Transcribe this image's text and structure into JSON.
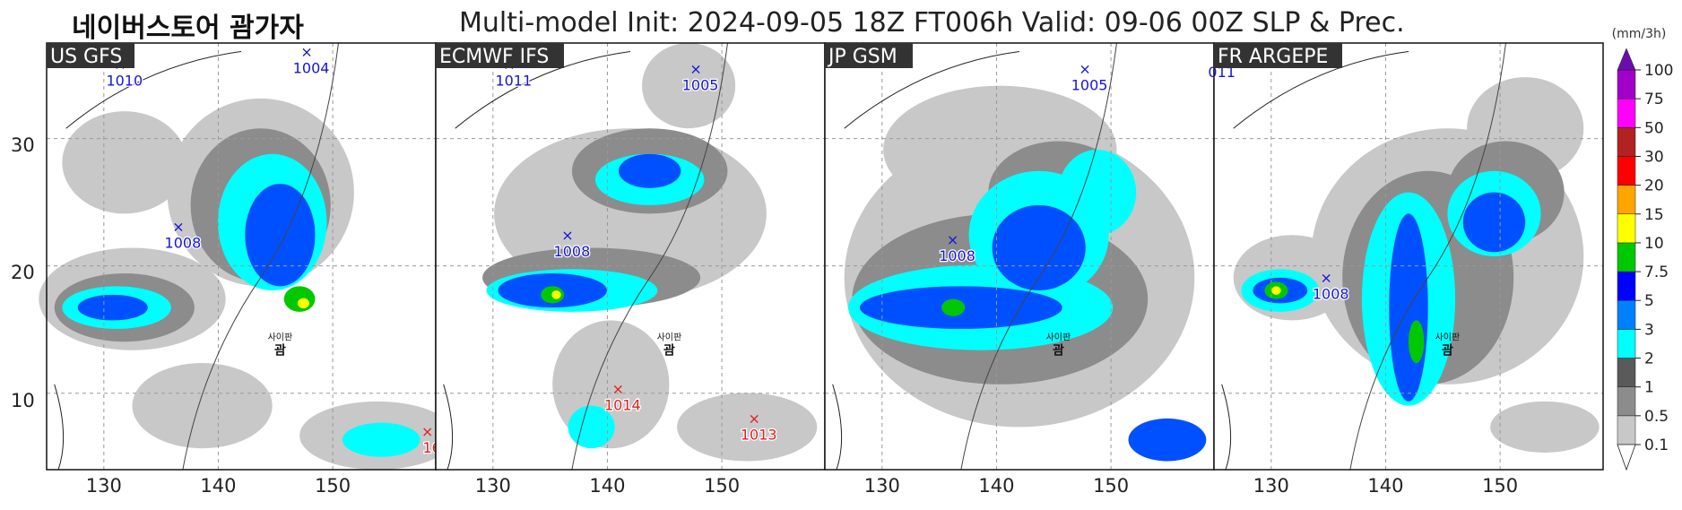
{
  "header": {
    "brand": "네이버스토어 괌가자",
    "title": "Multi-model   Init: 2024-09-05 18Z    FT006h    Valid: 09-06 00Z    SLP & Prec."
  },
  "axes": {
    "lat_labels": [
      "30",
      "20",
      "10"
    ],
    "lon_labels": [
      "130",
      "140",
      "150"
    ]
  },
  "colorbar": {
    "unit": "(mm/3h)",
    "levels": [
      "0.1",
      "0.5",
      "1",
      "2",
      "3",
      "5",
      "7.5",
      "10",
      "15",
      "20",
      "30",
      "50",
      "75",
      "100"
    ],
    "colors": [
      "#c8c8c8",
      "#8c8c8c",
      "#5a5a5a",
      "#00ffff",
      "#0080ff",
      "#0000ff",
      "#00c800",
      "#ffff00",
      "#ffa500",
      "#ff0000",
      "#b22222",
      "#ff00ff",
      "#a000c8",
      "#6a0dad"
    ]
  },
  "map_colors": {
    "prec_light": "#c8c8c8",
    "prec_mid": "#8c8c8c",
    "prec_cyan": "#00ffff",
    "prec_blue": "#0050ff",
    "prec_green": "#00c800",
    "prec_yellow": "#ffff00",
    "low_marker": "#1515d6",
    "high_marker": "#e02020"
  },
  "panels": [
    {
      "label": "US GFS",
      "pressure_labels": [
        {
          "text": "1010",
          "type": "low"
        },
        {
          "text": "1004",
          "type": "low"
        },
        {
          "text": "1008",
          "type": "low"
        },
        {
          "text": "16",
          "type": "high"
        }
      ],
      "guam_label": "괌",
      "guam_sublabel": "사이판"
    },
    {
      "label": "ECMWF IFS",
      "pressure_labels": [
        {
          "text": "1011",
          "type": "low"
        },
        {
          "text": "1005",
          "type": "low"
        },
        {
          "text": "1008",
          "type": "low"
        },
        {
          "text": "1014",
          "type": "high"
        },
        {
          "text": "1013",
          "type": "high"
        }
      ],
      "guam_label": "괌",
      "guam_sublabel": "사이판"
    },
    {
      "label": "JP GSM",
      "pressure_labels": [
        {
          "text": "1005",
          "type": "low"
        },
        {
          "text": "1008",
          "type": "low"
        }
      ],
      "guam_label": "괌",
      "guam_sublabel": "사이판"
    },
    {
      "label": "FR ARGEPE",
      "pressure_labels": [
        {
          "text": "011",
          "type": "low"
        },
        {
          "text": "1008",
          "type": "low"
        }
      ],
      "guam_label": "괌",
      "guam_sublabel": "사이판"
    }
  ]
}
